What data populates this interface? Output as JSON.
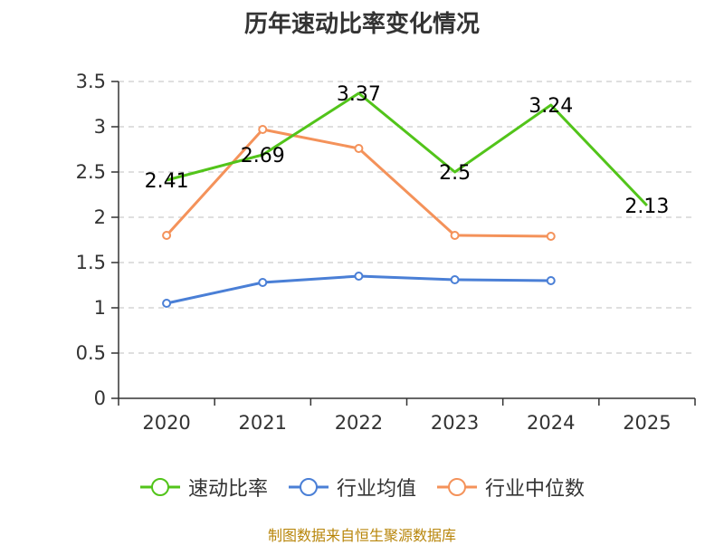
{
  "chart_data": {
    "type": "line",
    "title": "历年速动比率变化情况",
    "categories": [
      "2020",
      "2021",
      "2022",
      "2023",
      "2024",
      "2025"
    ],
    "ylim": [
      0,
      3.5
    ],
    "yticks": [
      "0",
      "0.5",
      "1",
      "1.5",
      "2",
      "2.5",
      "3",
      "3.5"
    ],
    "grid": true,
    "legend_position": "bottom",
    "series": [
      {
        "name": "速动比率",
        "color": "#52c41a",
        "values": [
          2.41,
          2.69,
          3.37,
          2.5,
          3.24,
          2.13
        ],
        "labels": [
          "2.41",
          "2.69",
          "3.37",
          "2.5",
          "3.24",
          "2.13"
        ],
        "markers": false
      },
      {
        "name": "行业均值",
        "color": "#4a7fd6",
        "values": [
          1.05,
          1.28,
          1.35,
          1.31,
          1.3,
          null
        ],
        "markers": true
      },
      {
        "name": "行业中位数",
        "color": "#f4925a",
        "values": [
          1.8,
          2.97,
          2.76,
          1.8,
          1.79,
          null
        ],
        "markers": true
      }
    ]
  },
  "footer": {
    "source_note": "制图数据来自恒生聚源数据库"
  }
}
